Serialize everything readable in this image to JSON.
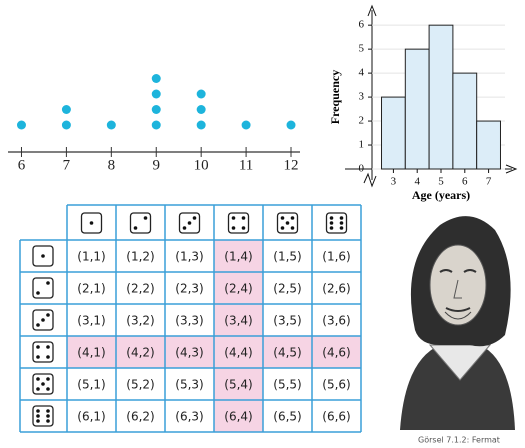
{
  "chart_data": [
    {
      "type": "dot",
      "x": [
        6,
        7,
        8,
        9,
        10,
        11,
        12
      ],
      "values": [
        1,
        2,
        1,
        4,
        3,
        1,
        1
      ],
      "color": "#1db4dc",
      "xlim": [
        5.7,
        12.2
      ],
      "xticks": [
        6,
        7,
        8,
        9,
        10,
        11,
        12
      ]
    },
    {
      "type": "histogram",
      "bins": [
        2.5,
        3.5,
        4.5,
        5.5,
        6.5,
        7.5
      ],
      "values": [
        3,
        5,
        6,
        4,
        2
      ],
      "color": "#dcedf8",
      "xlim": [
        2.1,
        7.9
      ],
      "xticks": [
        3,
        4,
        5,
        6,
        7
      ],
      "ylim": [
        0,
        6.8
      ],
      "yticks": [
        0,
        1,
        2,
        3,
        4,
        5,
        6
      ],
      "xlabel": "Age (years)",
      "ylabel": "Frequency",
      "grid": true
    }
  ],
  "table": {
    "columns": [
      1,
      2,
      3,
      4,
      5,
      6
    ],
    "row_headers": [
      1,
      2,
      3,
      4,
      5,
      6
    ],
    "highlight": 4,
    "highlight_color": "#f6d4e4",
    "border_color": "#3a9fd8",
    "rows": [
      [
        "(1,1)",
        "(1,2)",
        "(1,3)",
        "(1,4)",
        "(1,5)",
        "(1,6)"
      ],
      [
        "(2,1)",
        "(2,2)",
        "(2,3)",
        "(2,4)",
        "(2,5)",
        "(2,6)"
      ],
      [
        "(3,1)",
        "(3,2)",
        "(3,3)",
        "(3,4)",
        "(3,5)",
        "(3,6)"
      ],
      [
        "(4,1)",
        "(4,2)",
        "(4,3)",
        "(4,4)",
        "(4,5)",
        "(4,6)"
      ],
      [
        "(5,1)",
        "(5,2)",
        "(5,3)",
        "(5,4)",
        "(5,5)",
        "(5,6)"
      ],
      [
        "(6,1)",
        "(6,2)",
        "(6,3)",
        "(6,4)",
        "(6,5)",
        "(6,6)"
      ]
    ]
  },
  "figure": {
    "caption": "Görsel 7.1.2: Fermat"
  }
}
